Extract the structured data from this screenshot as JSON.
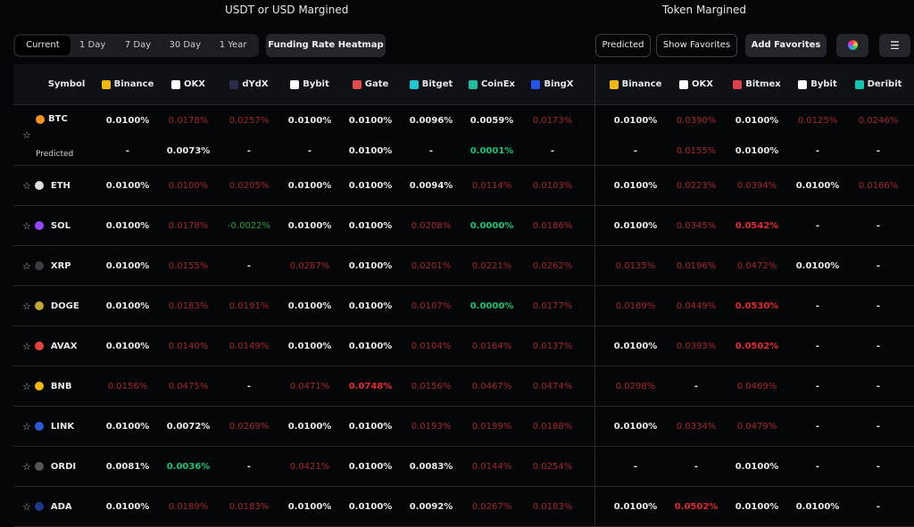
{
  "sections": {
    "usdt": "USDT or USD Margined",
    "token": "Token Margined"
  },
  "periods": [
    "Current",
    "1 Day",
    "7 Day",
    "30 Day",
    "1 Year"
  ],
  "heatmap_label": "Funding Rate Heatmap",
  "predicted_label": "Predicted",
  "show_favorites_label": "Show Favorites",
  "add_favorites_label": "Add Favorites",
  "icons": {
    "color": "color-wheel-icon",
    "settings": "sliders-icon",
    "favorite": "star-icon"
  },
  "colors": {
    "w": "#e6e8ea",
    "r": "#a7282b",
    "R": "#e2292f",
    "g": "#11c47a",
    "G": "#22a133"
  },
  "symbol_header": "Symbol",
  "usdt_exchanges": [
    {
      "name": "Binance",
      "color": "#f0b90b"
    },
    {
      "name": "OKX",
      "color": "#ffffff"
    },
    {
      "name": "dYdX",
      "color": "#2b2b4a"
    },
    {
      "name": "Bybit",
      "color": "#ffffff"
    },
    {
      "name": "Gate",
      "color": "#e24b4b"
    },
    {
      "name": "Bitget",
      "color": "#1fc7d4"
    },
    {
      "name": "CoinEx",
      "color": "#1bbfa0"
    },
    {
      "name": "BingX",
      "color": "#2a54f0"
    }
  ],
  "token_exchanges": [
    {
      "name": "Binance",
      "color": "#f0b90b"
    },
    {
      "name": "OKX",
      "color": "#ffffff"
    },
    {
      "name": "Bitmex",
      "color": "#e0404a"
    },
    {
      "name": "Bybit",
      "color": "#ffffff"
    },
    {
      "name": "Deribit",
      "color": "#17c4b0"
    }
  ],
  "btc": {
    "symbol": "BTC",
    "coin_color": "#f7931a",
    "predicted_label": "Predicted",
    "current": [
      [
        "0.0100%",
        "w"
      ],
      [
        "0.0178%",
        "r"
      ],
      [
        "0.0257%",
        "r"
      ],
      [
        "0.0100%",
        "w"
      ],
      [
        "0.0100%",
        "w"
      ],
      [
        "0.0096%",
        "w"
      ],
      [
        "0.0059%",
        "w"
      ],
      [
        "0.0173%",
        "r"
      ],
      [
        "0.0100%",
        "w"
      ],
      [
        "0.0390%",
        "r"
      ],
      [
        "0.0100%",
        "w"
      ],
      [
        "0.0125%",
        "r"
      ],
      [
        "0.0246%",
        "r"
      ]
    ],
    "predicted": [
      [
        "-",
        "w"
      ],
      [
        "0.0073%",
        "w"
      ],
      [
        "-",
        "w"
      ],
      [
        "-",
        "w"
      ],
      [
        "0.0100%",
        "w"
      ],
      [
        "-",
        "w"
      ],
      [
        "0.0001%",
        "g"
      ],
      [
        "-",
        "w"
      ],
      [
        "-",
        "w"
      ],
      [
        "0.0155%",
        "r"
      ],
      [
        "0.0100%",
        "w"
      ],
      [
        "-",
        "w"
      ],
      [
        "-",
        "w"
      ]
    ]
  },
  "rows": [
    {
      "symbol": "ETH",
      "coin_color": "#dddddd",
      "cells": [
        [
          "0.0100%",
          "w"
        ],
        [
          "0.0100%",
          "r"
        ],
        [
          "0.0205%",
          "r"
        ],
        [
          "0.0100%",
          "w"
        ],
        [
          "0.0100%",
          "w"
        ],
        [
          "0.0094%",
          "w"
        ],
        [
          "0.0114%",
          "r"
        ],
        [
          "0.0103%",
          "r"
        ],
        [
          "0.0100%",
          "w"
        ],
        [
          "0.0223%",
          "r"
        ],
        [
          "0.0394%",
          "r"
        ],
        [
          "0.0100%",
          "w"
        ],
        [
          "0.0166%",
          "r"
        ]
      ]
    },
    {
      "symbol": "SOL",
      "coin_color": "#9945ff",
      "cells": [
        [
          "0.0100%",
          "w"
        ],
        [
          "0.0178%",
          "r"
        ],
        [
          "-0.0022%",
          "G"
        ],
        [
          "0.0100%",
          "w"
        ],
        [
          "0.0100%",
          "w"
        ],
        [
          "0.0208%",
          "r"
        ],
        [
          "0.0000%",
          "g"
        ],
        [
          "0.0186%",
          "r"
        ],
        [
          "0.0100%",
          "w"
        ],
        [
          "0.0345%",
          "r"
        ],
        [
          "0.0542%",
          "R"
        ],
        [
          "-",
          "w"
        ],
        [
          "-",
          "w"
        ]
      ]
    },
    {
      "symbol": "XRP",
      "coin_color": "#3a3d43",
      "cells": [
        [
          "0.0100%",
          "w"
        ],
        [
          "0.0155%",
          "r"
        ],
        [
          "-",
          "w"
        ],
        [
          "0.0287%",
          "r"
        ],
        [
          "0.0100%",
          "w"
        ],
        [
          "0.0201%",
          "r"
        ],
        [
          "0.0221%",
          "r"
        ],
        [
          "0.0262%",
          "r"
        ],
        [
          "0.0135%",
          "r"
        ],
        [
          "0.0196%",
          "r"
        ],
        [
          "0.0472%",
          "r"
        ],
        [
          "0.0100%",
          "w"
        ],
        [
          "-",
          "w"
        ]
      ]
    },
    {
      "symbol": "DOGE",
      "coin_color": "#c2a633",
      "cells": [
        [
          "0.0100%",
          "w"
        ],
        [
          "0.0183%",
          "r"
        ],
        [
          "0.0191%",
          "r"
        ],
        [
          "0.0100%",
          "w"
        ],
        [
          "0.0100%",
          "w"
        ],
        [
          "0.0107%",
          "r"
        ],
        [
          "0.0000%",
          "g"
        ],
        [
          "0.0177%",
          "r"
        ],
        [
          "0.0189%",
          "r"
        ],
        [
          "0.0449%",
          "r"
        ],
        [
          "0.0530%",
          "R"
        ],
        [
          "-",
          "w"
        ],
        [
          "-",
          "w"
        ]
      ]
    },
    {
      "symbol": "AVAX",
      "coin_color": "#e84142",
      "cells": [
        [
          "0.0100%",
          "w"
        ],
        [
          "0.0140%",
          "r"
        ],
        [
          "0.0149%",
          "r"
        ],
        [
          "0.0100%",
          "w"
        ],
        [
          "0.0100%",
          "w"
        ],
        [
          "0.0104%",
          "r"
        ],
        [
          "0.0164%",
          "r"
        ],
        [
          "0.0137%",
          "r"
        ],
        [
          "0.0100%",
          "w"
        ],
        [
          "0.0393%",
          "r"
        ],
        [
          "0.0502%",
          "R"
        ],
        [
          "-",
          "w"
        ],
        [
          "-",
          "w"
        ]
      ]
    },
    {
      "symbol": "BNB",
      "coin_color": "#f0b90b",
      "cells": [
        [
          "0.0156%",
          "r"
        ],
        [
          "0.0475%",
          "r"
        ],
        [
          "-",
          "w"
        ],
        [
          "0.0471%",
          "r"
        ],
        [
          "0.0748%",
          "R"
        ],
        [
          "0.0156%",
          "r"
        ],
        [
          "0.0467%",
          "r"
        ],
        [
          "0.0474%",
          "r"
        ],
        [
          "0.0298%",
          "r"
        ],
        [
          "-",
          "w"
        ],
        [
          "0.0469%",
          "r"
        ],
        [
          "-",
          "w"
        ],
        [
          "-",
          "w"
        ]
      ]
    },
    {
      "symbol": "LINK",
      "coin_color": "#2a5ada",
      "cells": [
        [
          "0.0100%",
          "w"
        ],
        [
          "0.0072%",
          "w"
        ],
        [
          "0.0269%",
          "r"
        ],
        [
          "0.0100%",
          "w"
        ],
        [
          "0.0100%",
          "w"
        ],
        [
          "0.0193%",
          "r"
        ],
        [
          "0.0199%",
          "r"
        ],
        [
          "0.0188%",
          "r"
        ],
        [
          "0.0100%",
          "w"
        ],
        [
          "0.0334%",
          "r"
        ],
        [
          "0.0479%",
          "r"
        ],
        [
          "-",
          "w"
        ],
        [
          "-",
          "w"
        ]
      ]
    },
    {
      "symbol": "ORDI",
      "coin_color": "#555555",
      "cells": [
        [
          "0.0081%",
          "w"
        ],
        [
          "0.0036%",
          "g"
        ],
        [
          "-",
          "w"
        ],
        [
          "0.0421%",
          "r"
        ],
        [
          "0.0100%",
          "w"
        ],
        [
          "0.0083%",
          "w"
        ],
        [
          "0.0144%",
          "r"
        ],
        [
          "0.0254%",
          "r"
        ],
        [
          "-",
          "w"
        ],
        [
          "-",
          "w"
        ],
        [
          "0.0100%",
          "w"
        ],
        [
          "-",
          "w"
        ],
        [
          "-",
          "w"
        ]
      ]
    },
    {
      "symbol": "ADA",
      "coin_color": "#1e3a8a",
      "cells": [
        [
          "0.0100%",
          "w"
        ],
        [
          "0.0189%",
          "r"
        ],
        [
          "0.0183%",
          "r"
        ],
        [
          "0.0100%",
          "w"
        ],
        [
          "0.0100%",
          "w"
        ],
        [
          "0.0092%",
          "w"
        ],
        [
          "0.0267%",
          "r"
        ],
        [
          "0.0183%",
          "r"
        ],
        [
          "0.0100%",
          "w"
        ],
        [
          "0.0502%",
          "R"
        ],
        [
          "0.0100%",
          "w"
        ],
        [
          "0.0100%",
          "w"
        ],
        [
          "-",
          "w"
        ]
      ]
    }
  ]
}
